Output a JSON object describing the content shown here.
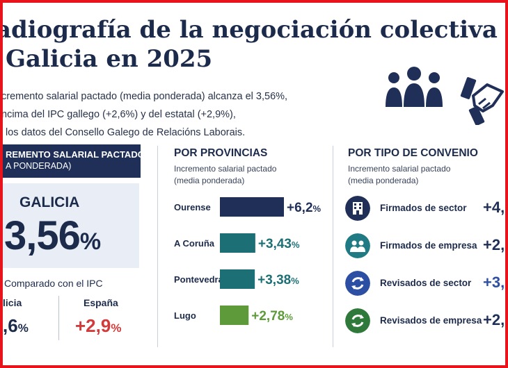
{
  "header": {
    "title_line1": "adiografía de la negociación colectiva",
    "title_line2": "Galicia en 2025",
    "subtitle_line1": "cremento salarial pactado (media ponderada) alcanza el 3,56%,",
    "subtitle_line2": "ncima del IPC gallego (+2,6%) y del estatal (+2,9%),",
    "subtitle_line3": "los datos del Consello Galego de Relacións Laborais."
  },
  "left_panel": {
    "banner_line1": "REMENTO SALARIAL PACTADO",
    "banner_line2": "A PONDERADA)",
    "region_label": "GALICIA",
    "region_value": "3,56",
    "region_unit": "%",
    "ipc_title": "Comparado con el IPC",
    "ipc": [
      {
        "name": "licia",
        "value": ",6",
        "unit": "%",
        "color": "#1c2b4b"
      },
      {
        "name": "España",
        "value": "+2,9",
        "unit": "%",
        "color": "#d23b3b"
      }
    ]
  },
  "provinces": {
    "title": "POR PROVINCIAS",
    "subtitle_line1": "Incremento salarial pactado",
    "subtitle_line2": "(media ponderada)"
  },
  "types": {
    "title": "POR TIPO DE CONVENIO",
    "subtitle_line1": "Incremento salarial pactado",
    "subtitle_line2": "(media ponderada)",
    "items": [
      {
        "label": "Firmados de sector",
        "value": "+4,",
        "icon": "building-icon",
        "color": "#1f2f57"
      },
      {
        "label": "Firmados de empresa",
        "value": "+2,",
        "icon": "workers-icon",
        "color": "#1f7a84"
      },
      {
        "label": "Revisados de sector",
        "value": "+3,",
        "icon": "refresh-icon",
        "color": "#2d4fa3"
      },
      {
        "label": "Revisados de empresa",
        "value": "+2,",
        "icon": "refresh-icon",
        "color": "#2f7a3a"
      }
    ]
  },
  "chart_data": {
    "type": "bar",
    "orientation": "horizontal",
    "title": "POR PROVINCIAS",
    "categories": [
      "Ourense",
      "A Coruña",
      "Pontevedra",
      "Lugo"
    ],
    "values": [
      6.2,
      3.43,
      3.38,
      2.78
    ],
    "value_labels": [
      "+6,2",
      "+3,43",
      "+3,38",
      "+2,78"
    ],
    "unit": "%",
    "colors": [
      "#1f2f57",
      "#1b6f75",
      "#1b6f75",
      "#5e9a3a"
    ],
    "xlim": [
      0,
      6.2
    ],
    "grid": false,
    "legend": "none"
  }
}
